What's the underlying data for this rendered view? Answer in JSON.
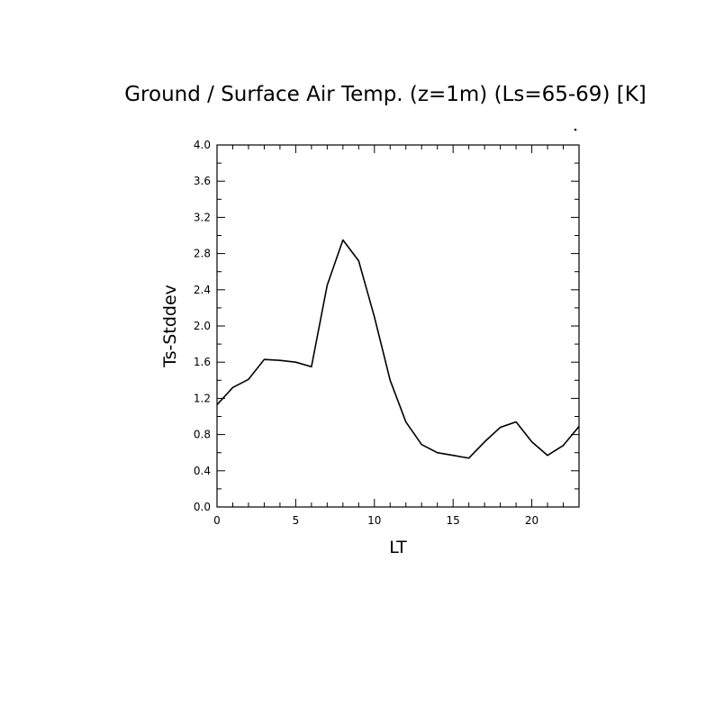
{
  "chart_data": {
    "type": "line",
    "title": "Ground / Surface Air Temp. (z=1m) (Ls=65-69) [K]",
    "xlabel": "LT",
    "ylabel": "Ts-Stddev",
    "xlim": [
      0,
      23
    ],
    "ylim": [
      0,
      4.0
    ],
    "x_ticks": [
      "0",
      "5",
      "10",
      "15",
      "20"
    ],
    "y_ticks": [
      "0.0",
      "0.4",
      "0.8",
      "1.2",
      "1.6",
      "2.0",
      "2.4",
      "2.8",
      "3.2",
      "3.6",
      "4.0"
    ],
    "grid": false,
    "colors": {
      "line": "#000000",
      "axes": "#000000"
    },
    "series": [
      {
        "x": [
          0,
          1,
          2,
          3,
          4,
          5,
          6,
          7,
          8,
          9,
          10,
          11,
          12,
          13,
          14,
          15,
          16,
          17,
          18,
          19,
          20,
          21,
          22,
          23
        ],
        "values": [
          1.13,
          1.32,
          1.41,
          1.63,
          1.62,
          1.6,
          1.55,
          2.45,
          2.95,
          2.72,
          2.1,
          1.4,
          0.94,
          0.69,
          0.6,
          0.57,
          0.54,
          0.72,
          0.88,
          0.94,
          0.72,
          0.57,
          0.68,
          0.89
        ]
      }
    ]
  }
}
